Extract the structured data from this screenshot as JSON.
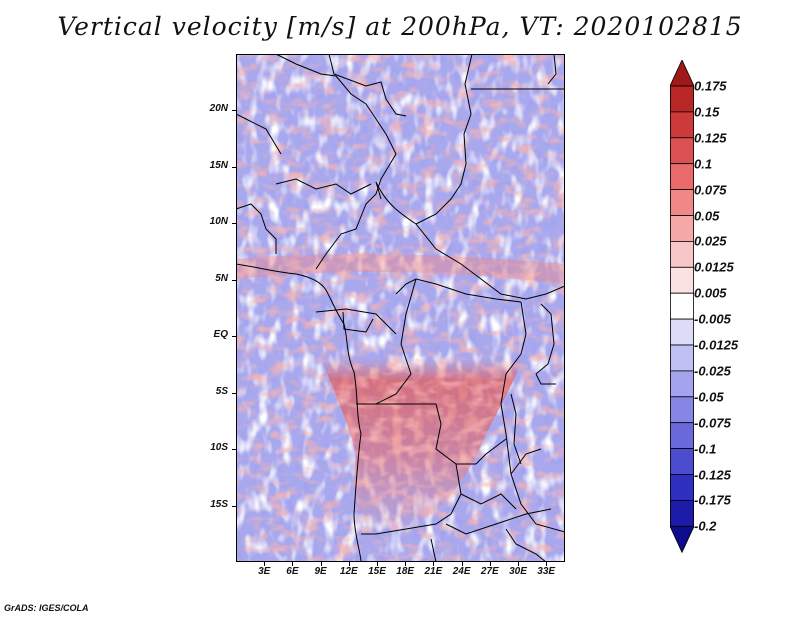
{
  "title": "Vertical velocity [m/s] at 200hPa, VT: 2020102815",
  "footer": "GrADS: IGES/COLA",
  "map": {
    "lon_range": [
      0,
      35
    ],
    "lat_range": [
      -20,
      25
    ],
    "x_ticks": [
      "3E",
      "6E",
      "9E",
      "12E",
      "15E",
      "18E",
      "21E",
      "24E",
      "27E",
      "30E",
      "33E"
    ],
    "x_tick_values": [
      3,
      6,
      9,
      12,
      15,
      18,
      21,
      24,
      27,
      30,
      33
    ],
    "y_ticks": [
      "20N",
      "15N",
      "10N",
      "5N",
      "EQ",
      "5S",
      "10S",
      "15S"
    ],
    "y_tick_values": [
      20,
      15,
      10,
      5,
      0,
      -5,
      -10,
      -15
    ],
    "field": "vertical velocity",
    "level": "200hPa"
  },
  "colorbar": {
    "labels": [
      "0.175",
      "0.15",
      "0.125",
      "0.1",
      "0.075",
      "0.05",
      "0.025",
      "0.0125",
      "0.005",
      "-0.005",
      "-0.0125",
      "-0.025",
      "-0.05",
      "-0.075",
      "-0.1",
      "-0.125",
      "-0.175",
      "-0.2"
    ],
    "colors": [
      "#a01818",
      "#b82626",
      "#cc3a3a",
      "#dc5252",
      "#e86a6a",
      "#f08888",
      "#f5a8a8",
      "#f8c6c6",
      "#fbe2e2",
      "#ffffff",
      "#dcdcf8",
      "#c0c0f4",
      "#a4a4ee",
      "#8686e6",
      "#6a6adc",
      "#4c4cd0",
      "#3030c0",
      "#1c1ca8",
      "#0c0c8c"
    ]
  }
}
